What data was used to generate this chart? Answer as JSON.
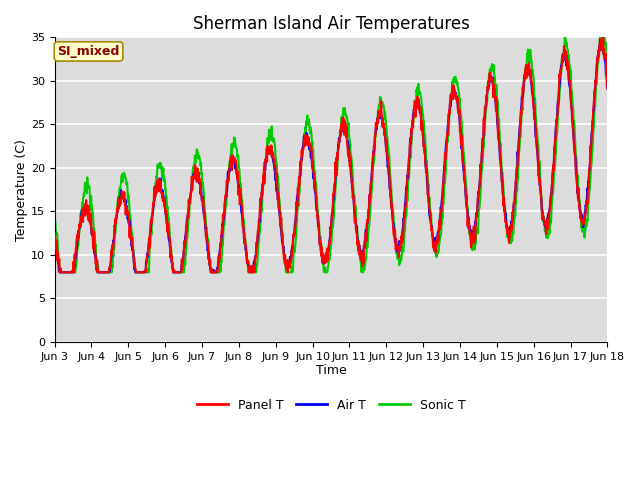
{
  "title": "Sherman Island Air Temperatures",
  "xlabel": "Time",
  "ylabel": "Temperature (C)",
  "ylim": [
    0,
    35
  ],
  "yticks": [
    0,
    5,
    10,
    15,
    20,
    25,
    30,
    35
  ],
  "annotation_text": "SI_mixed",
  "annotation_color": "#8B0000",
  "annotation_bg": "#FFFFCC",
  "line_colors": [
    "#FF0000",
    "#0000FF",
    "#00CC00"
  ],
  "line_labels": [
    "Panel T",
    "Air T",
    "Sonic T"
  ],
  "line_width": 1.5,
  "bg_color": "#DCDCDC",
  "grid_color": "#FFFFFF",
  "title_fontsize": 12,
  "axis_fontsize": 9,
  "tick_fontsize": 8,
  "legend_fontsize": 9,
  "num_days": 15,
  "pts_per_day": 96,
  "base_min": 9.5,
  "base_max": 19.5,
  "trend_rate": 1.0
}
